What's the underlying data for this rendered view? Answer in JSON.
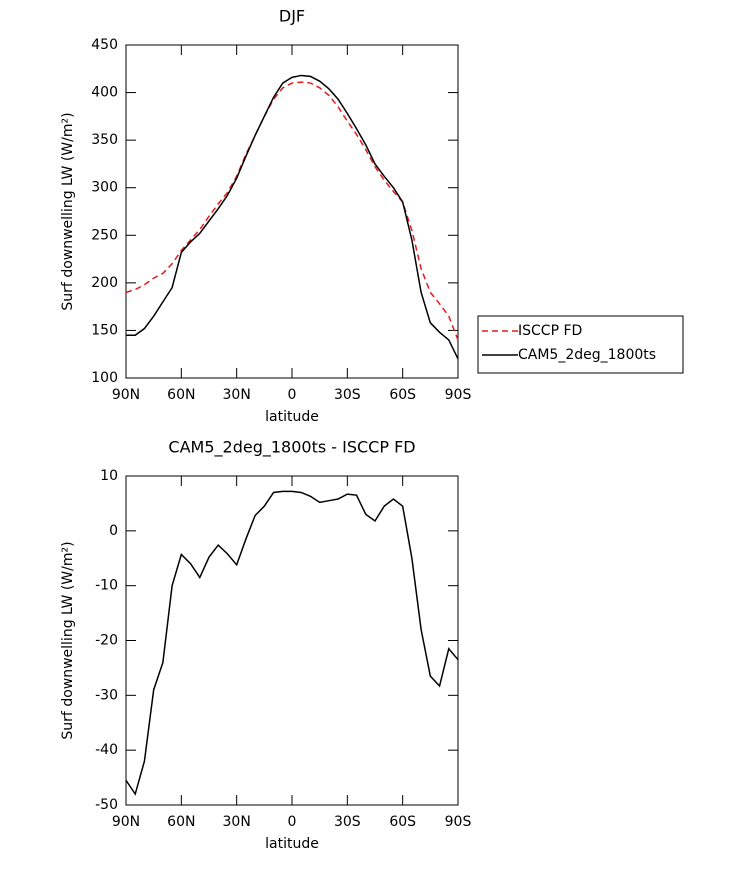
{
  "chart_data": [
    {
      "type": "line",
      "title": "DJF",
      "xlabel": "latitude",
      "ylabel": "Surf downwelling LW (W/m²)",
      "x": [
        90,
        85,
        80,
        75,
        70,
        65,
        60,
        55,
        50,
        45,
        40,
        35,
        30,
        25,
        20,
        15,
        10,
        5,
        0,
        -5,
        -10,
        -15,
        -20,
        -25,
        -30,
        -35,
        -40,
        -45,
        -50,
        -55,
        -60,
        -65,
        -70,
        -75,
        -80,
        -85,
        -90
      ],
      "xlim": [
        90,
        -90
      ],
      "xticks": [
        {
          "value": 90,
          "label": "90N"
        },
        {
          "value": 60,
          "label": "60N"
        },
        {
          "value": 30,
          "label": "30N"
        },
        0,
        {
          "value": -30,
          "label": "30S"
        },
        {
          "value": -60,
          "label": "60S"
        },
        {
          "value": -90,
          "label": "90S"
        }
      ],
      "ylim": [
        100,
        450
      ],
      "yticks": [
        100,
        150,
        200,
        250,
        300,
        350,
        400,
        450
      ],
      "legend": "right",
      "series": [
        {
          "name": "ISCCP FD",
          "color": "#e41a1c",
          "line_style": "dashed",
          "values": [
            190,
            193,
            198,
            205,
            210,
            220,
            234,
            245,
            256,
            270,
            283,
            295,
            312,
            335,
            355,
            375,
            393,
            405,
            410,
            411,
            410,
            405,
            397,
            385,
            370,
            356,
            340,
            322,
            308,
            296,
            285,
            255,
            215,
            190,
            178,
            165,
            140
          ]
        },
        {
          "name": "CAM5_2deg_1800ts",
          "color": "#000000",
          "line_style": "solid",
          "values": [
            145,
            145,
            152,
            165,
            180,
            195,
            232,
            243,
            252,
            265,
            278,
            292,
            310,
            333,
            355,
            375,
            395,
            410,
            416,
            418,
            417,
            412,
            404,
            393,
            378,
            362,
            345,
            325,
            312,
            300,
            285,
            245,
            190,
            158,
            148,
            140,
            120
          ]
        }
      ]
    },
    {
      "type": "line",
      "title": "CAM5_2deg_1800ts - ISCCP FD",
      "xlabel": "latitude",
      "ylabel": "Surf downwelling LW (W/m²)",
      "x": [
        90,
        85,
        80,
        75,
        70,
        65,
        60,
        55,
        50,
        45,
        40,
        35,
        30,
        25,
        20,
        15,
        10,
        5,
        0,
        -5,
        -10,
        -15,
        -20,
        -25,
        -30,
        -35,
        -40,
        -45,
        -50,
        -55,
        -60,
        -65,
        -70,
        -75,
        -80,
        -85,
        -90
      ],
      "xlim": [
        90,
        -90
      ],
      "xticks": [
        {
          "value": 90,
          "label": "90N"
        },
        {
          "value": 60,
          "label": "60N"
        },
        {
          "value": 30,
          "label": "30N"
        },
        0,
        {
          "value": -30,
          "label": "30S"
        },
        {
          "value": -60,
          "label": "60S"
        },
        {
          "value": -90,
          "label": "90S"
        }
      ],
      "ylim": [
        -50,
        10
      ],
      "yticks": [
        -50,
        -40,
        -30,
        -20,
        -10,
        0,
        10
      ],
      "color": "#000000",
      "values": [
        -45.5,
        -48,
        -42,
        -29,
        -24,
        -10,
        -4.3,
        -6,
        -8.5,
        -4.8,
        -2.6,
        -4.2,
        -6.2,
        -1.5,
        2.8,
        4.5,
        7,
        7.2,
        7.2,
        7,
        6.3,
        5.2,
        5.5,
        5.8,
        6.7,
        6.5,
        3,
        1.8,
        4.5,
        5.8,
        4.5,
        -5,
        -18,
        -26.5,
        -28.3,
        -21.5,
        -23.5
      ]
    }
  ]
}
